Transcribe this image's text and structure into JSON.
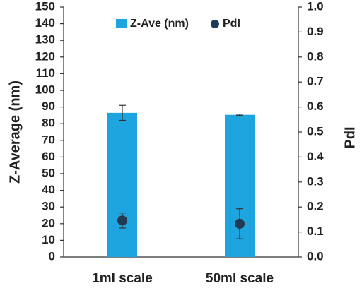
{
  "chart_data": {
    "type": "bar",
    "categories": [
      "1ml scale",
      "50ml scale"
    ],
    "ylabel": "Z-Average (nm)",
    "y2label": "PdI",
    "ylim": [
      0,
      150
    ],
    "y2lim": [
      0,
      1.0
    ],
    "yticks": [
      "0",
      "10",
      "20",
      "30",
      "40",
      "50",
      "60",
      "70",
      "80",
      "90",
      "100",
      "110",
      "120",
      "130",
      "140",
      "150"
    ],
    "y2ticks": [
      "0.0",
      "0.1",
      "0.2",
      "0.3",
      "0.4",
      "0.5",
      "0.6",
      "0.7",
      "0.8",
      "0.9",
      "1.0"
    ],
    "grid": false,
    "legend_position": "top-center",
    "series": [
      {
        "name": "Z-Ave (nm)",
        "kind": "bar",
        "axis": "left",
        "color": "#1ea5e0",
        "values": [
          86.5,
          85.3
        ],
        "errors": [
          4.5,
          0.4
        ]
      },
      {
        "name": "PdI",
        "kind": "marker",
        "axis": "right",
        "color": "#1f3b5a",
        "values": [
          0.146,
          0.133
        ],
        "errors": [
          0.03,
          0.06
        ]
      }
    ]
  }
}
